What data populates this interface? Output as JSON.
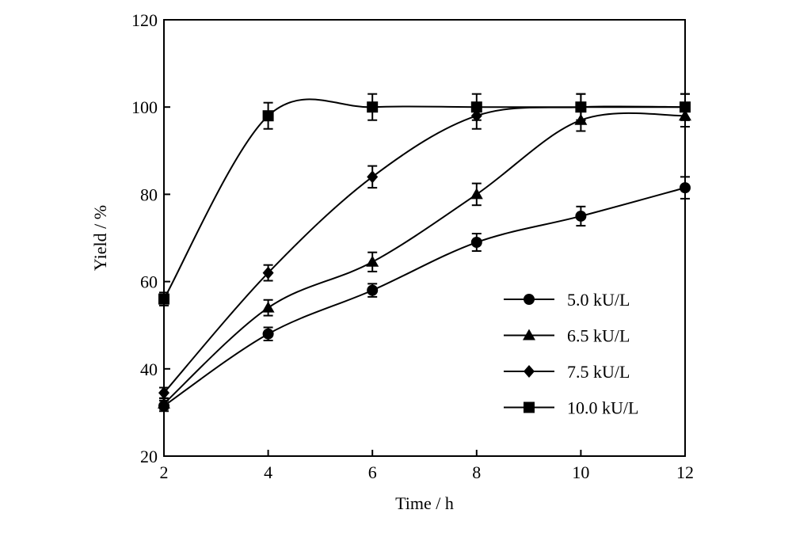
{
  "chart_data": {
    "type": "line",
    "title": "",
    "xlabel": "Time / h",
    "ylabel": "Yield / %",
    "xlim": [
      2,
      12
    ],
    "ylim": [
      20,
      120
    ],
    "xticks": [
      "2",
      "4",
      "6",
      "8",
      "10",
      "12"
    ],
    "yticks": [
      "20",
      "40",
      "60",
      "80",
      "100",
      "120"
    ],
    "grid": false,
    "legend_position": "lower-right",
    "smooth": true,
    "series": [
      {
        "name": "5.0 kU/L",
        "marker": "circle",
        "x": [
          2,
          4,
          6,
          8,
          10,
          12
        ],
        "y": [
          31.5,
          48,
          58,
          69,
          75,
          81.5
        ],
        "err": [
          1.2,
          1.5,
          1.5,
          2,
          2.2,
          2.5
        ]
      },
      {
        "name": "6.5 kU/L",
        "marker": "triangle",
        "x": [
          2,
          4,
          6,
          8,
          10,
          12
        ],
        "y": [
          32,
          54,
          64.5,
          80,
          97,
          98
        ],
        "err": [
          1.2,
          1.8,
          2.2,
          2.5,
          2.5,
          2.5
        ]
      },
      {
        "name": "7.5 kU/L",
        "marker": "diamond",
        "x": [
          2,
          4,
          6,
          8,
          10,
          12
        ],
        "y": [
          34.5,
          62,
          84,
          98,
          100,
          100
        ],
        "err": [
          1.2,
          1.8,
          2.5,
          3,
          3,
          3
        ]
      },
      {
        "name": "10.0 kU/L",
        "marker": "square",
        "x": [
          2,
          4,
          6,
          8,
          10,
          12
        ],
        "y": [
          56,
          98,
          100,
          100,
          100,
          100
        ],
        "err": [
          1.5,
          3,
          3,
          3,
          3,
          3
        ]
      }
    ]
  }
}
